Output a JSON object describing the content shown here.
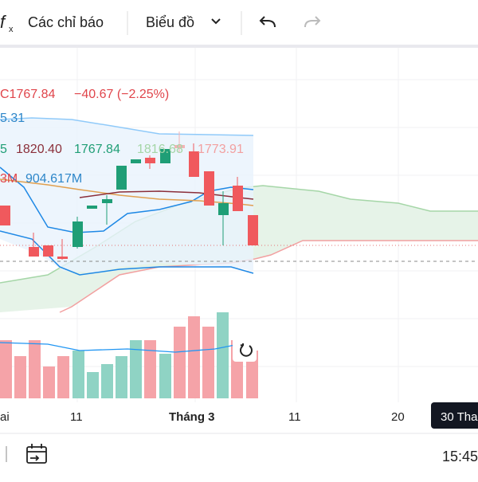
{
  "toolbar": {
    "indicators": "Các chỉ báo",
    "chart": "Biểu đồ"
  },
  "legend": {
    "close": "C1767.84",
    "change": "−40.67 (−2.25%)",
    "line2": "5.31",
    "ind1": "5",
    "ind2": "1820.40",
    "ind3": "1767.84",
    "ind4": "1816.68",
    "ind5": "1773.91",
    "vol1": "3M",
    "vol2": "904.617M"
  },
  "xaxis": [
    "ai",
    "11",
    "Tháng 3",
    "11",
    "20",
    "30 Tha"
  ],
  "footer": {
    "time": "15:45"
  }
}
